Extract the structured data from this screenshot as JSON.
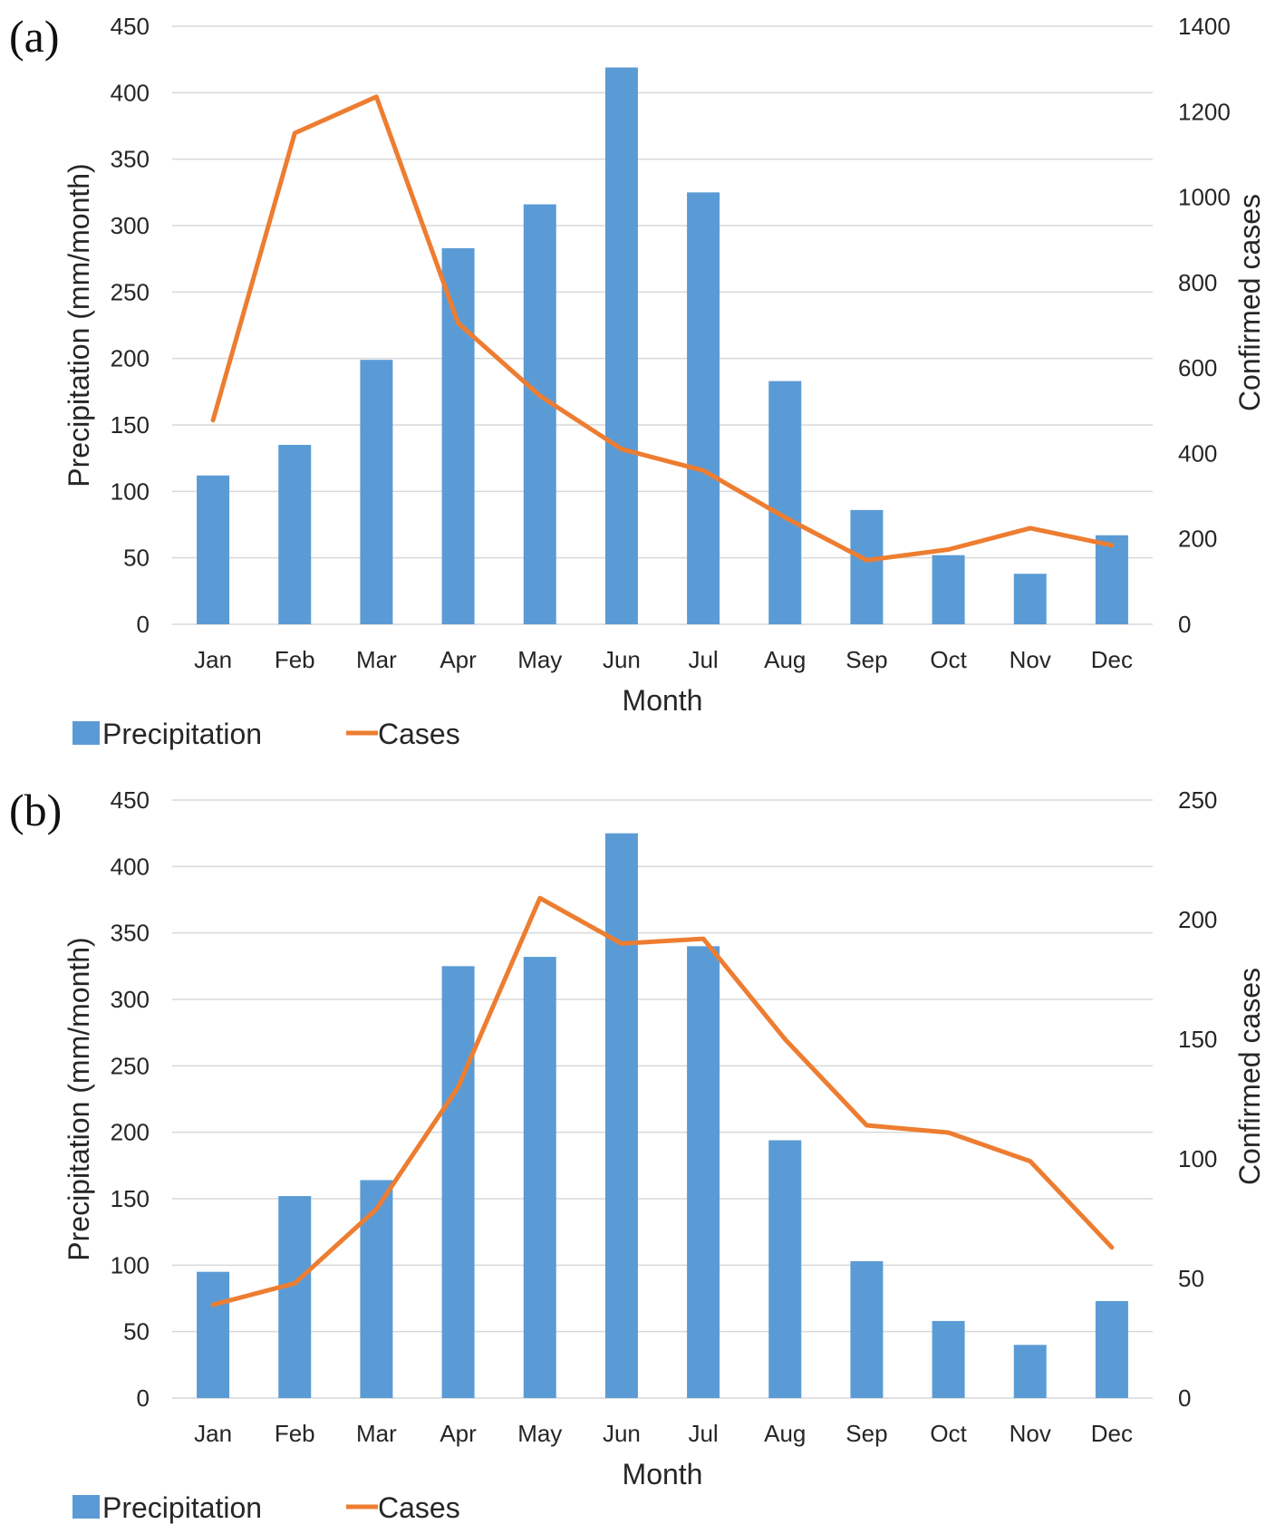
{
  "colors": {
    "bar": "#5b9bd5",
    "line": "#ed7d31",
    "grid": "#d9d9d9",
    "text": "#262626"
  },
  "chart_data": [
    {
      "panel_label": "(a)",
      "type": "bar+line",
      "categories": [
        "Jan",
        "Feb",
        "Mar",
        "Apr",
        "May",
        "Jun",
        "Jul",
        "Aug",
        "Sep",
        "Oct",
        "Nov",
        "Dec"
      ],
      "series": [
        {
          "name": "Precipitation",
          "type": "bar",
          "axis": "left",
          "values": [
            112,
            135,
            199,
            283,
            316,
            419,
            325,
            183,
            86,
            52,
            38,
            67
          ]
        },
        {
          "name": "Cases",
          "type": "line",
          "axis": "right",
          "values": [
            478,
            1150,
            1235,
            705,
            535,
            410,
            360,
            250,
            150,
            175,
            225,
            185
          ]
        }
      ],
      "xlabel": "Month",
      "ylabel": "Precipitation (mm/month)",
      "y2label": "Confirmed cases",
      "ylim": [
        0,
        450
      ],
      "yticks": [
        "0",
        "50",
        "100",
        "150",
        "200",
        "250",
        "300",
        "350",
        "400",
        "450"
      ],
      "y2lim": [
        0,
        1400
      ],
      "y2ticks": [
        "0",
        "200",
        "400",
        "600",
        "800",
        "1000",
        "1200",
        "1400"
      ],
      "legend": [
        "Precipitation",
        "Cases"
      ],
      "legend_position": "bottom-left",
      "grid": true
    },
    {
      "panel_label": "(b)",
      "type": "bar+line",
      "categories": [
        "Jan",
        "Feb",
        "Mar",
        "Apr",
        "May",
        "Jun",
        "Jul",
        "Aug",
        "Sep",
        "Oct",
        "Nov",
        "Dec"
      ],
      "series": [
        {
          "name": "Precipitation",
          "type": "bar",
          "axis": "left",
          "values": [
            95,
            152,
            164,
            325,
            332,
            425,
            340,
            194,
            103,
            58,
            40,
            73
          ]
        },
        {
          "name": "Cases",
          "type": "line",
          "axis": "right",
          "values": [
            39,
            48,
            79,
            130,
            209,
            190,
            192,
            150,
            114,
            111,
            99,
            63
          ]
        }
      ],
      "xlabel": "Month",
      "ylabel": "Precipitation (mm/month)",
      "y2label": "Confirmed cases",
      "ylim": [
        0,
        450
      ],
      "yticks": [
        "0",
        "50",
        "100",
        "150",
        "200",
        "250",
        "300",
        "350",
        "400",
        "450"
      ],
      "y2lim": [
        0,
        250
      ],
      "y2ticks": [
        "0",
        "50",
        "100",
        "150",
        "200",
        "250"
      ],
      "legend": [
        "Precipitation",
        "Cases"
      ],
      "legend_position": "bottom-left",
      "grid": true
    }
  ]
}
